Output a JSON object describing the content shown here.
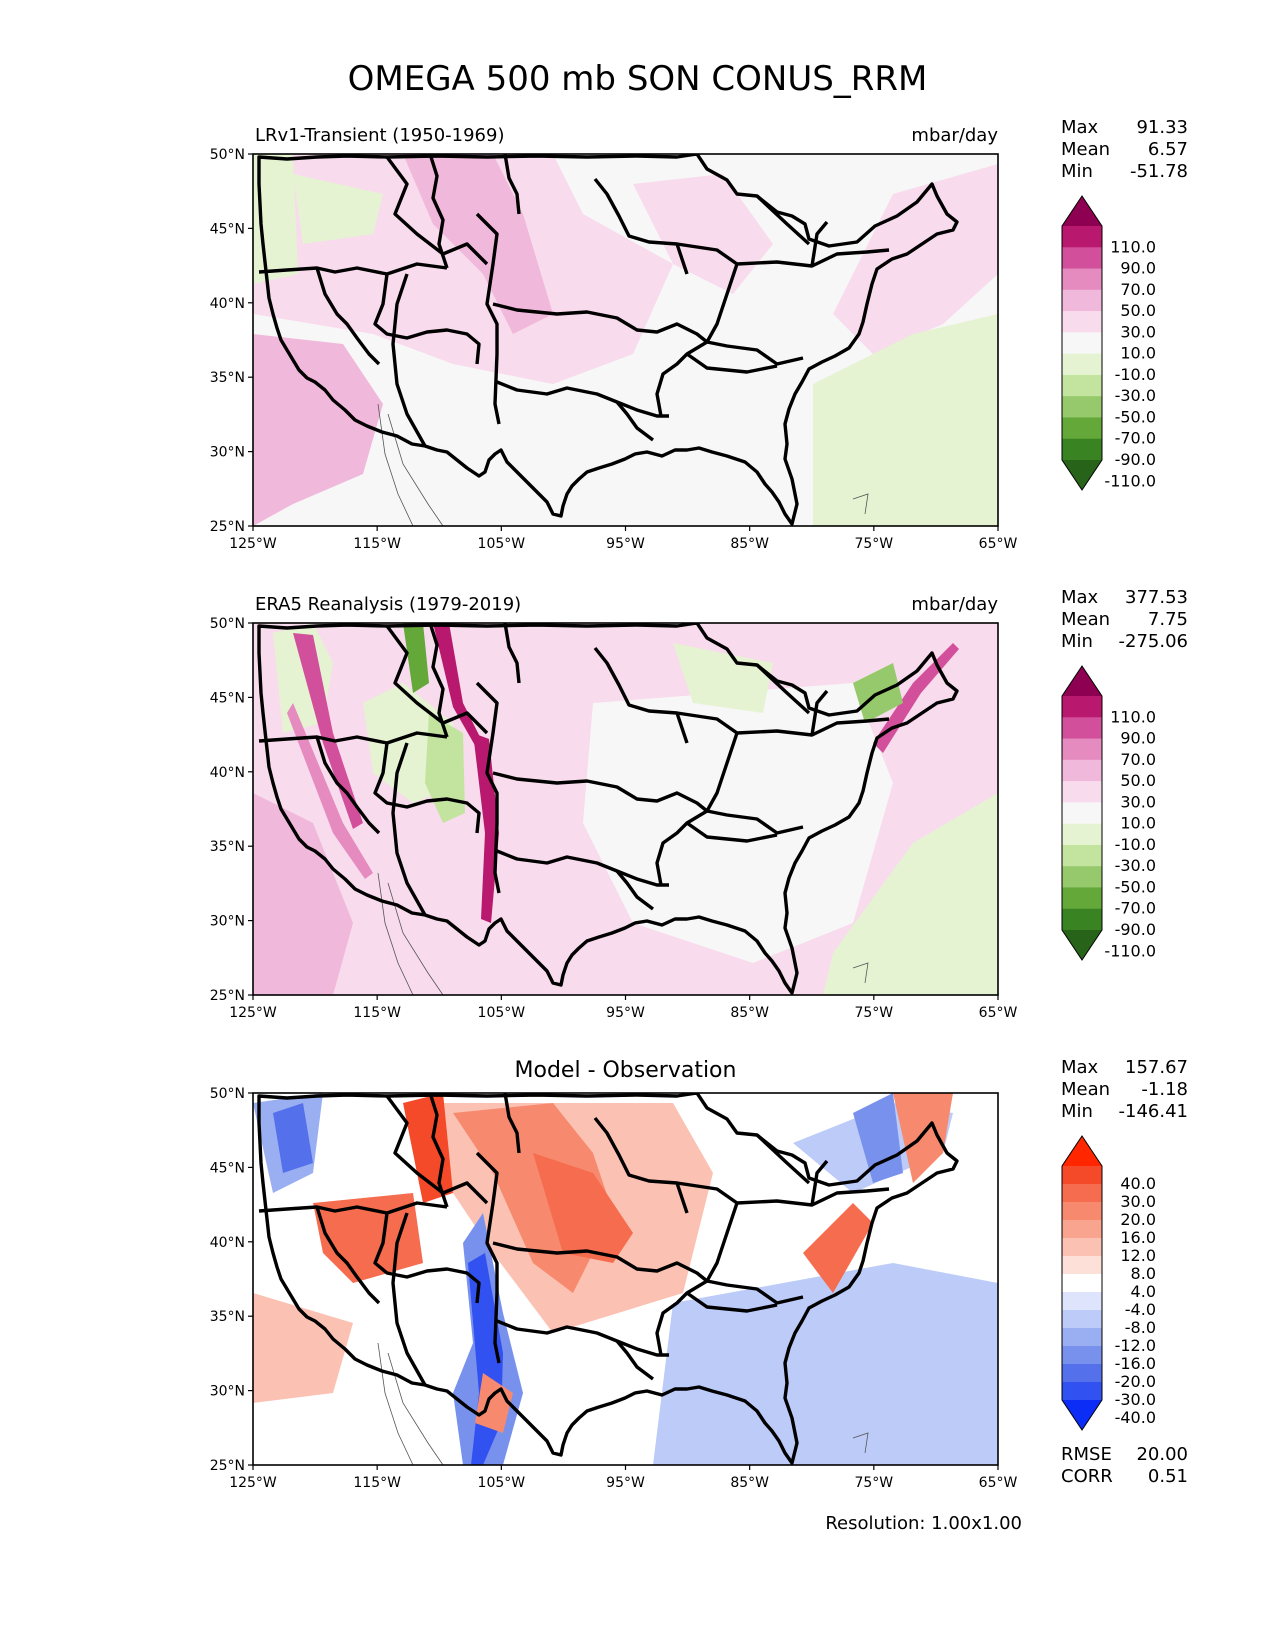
{
  "title": "OMEGA 500 mb SON CONUS_RRM",
  "x_ticks": [
    "125°W",
    "115°W",
    "105°W",
    "95°W",
    "85°W",
    "75°W",
    "65°W"
  ],
  "y_ticks": [
    "50°N",
    "45°N",
    "40°N",
    "35°N",
    "30°N",
    "25°N"
  ],
  "panels": [
    {
      "left_title": "LRv1-Transient (1950-1969)",
      "right_title": "mbar/day",
      "stats": {
        "max_label": "Max",
        "max": "91.33",
        "mean_label": "Mean",
        "mean": "6.57",
        "min_label": "Min",
        "min": "-51.78"
      },
      "levels": [
        "110.0",
        "90.0",
        "70.0",
        "50.0",
        "30.0",
        "10.0",
        "-10.0",
        "-30.0",
        "-50.0",
        "-70.0",
        "-90.0",
        "-110.0"
      ]
    },
    {
      "left_title": "ERA5 Reanalysis (1979-2019)",
      "right_title": "mbar/day",
      "stats": {
        "max_label": "Max",
        "max": "377.53",
        "mean_label": "Mean",
        "mean": "7.75",
        "min_label": "Min",
        "min": "-275.06"
      },
      "levels": [
        "110.0",
        "90.0",
        "70.0",
        "50.0",
        "30.0",
        "10.0",
        "-10.0",
        "-30.0",
        "-50.0",
        "-70.0",
        "-90.0",
        "-110.0"
      ]
    },
    {
      "center_title": "Model - Observation",
      "stats": {
        "max_label": "Max",
        "max": "157.67",
        "mean_label": "Mean",
        "mean": "-1.18",
        "min_label": "Min",
        "min": "-146.41"
      },
      "levels": [
        "40.0",
        "30.0",
        "20.0",
        "16.0",
        "12.0",
        "8.0",
        "4.0",
        "-4.0",
        "-8.0",
        "-12.0",
        "-16.0",
        "-20.0",
        "-30.0",
        "-40.0"
      ],
      "extra": {
        "rmse_label": "RMSE",
        "rmse": "20.00",
        "corr_label": "CORR",
        "corr": "0.51"
      }
    }
  ],
  "footer": "Resolution: 1.00x1.00",
  "colors": {
    "pink_scale": [
      "#8e0152",
      "#b8186d",
      "#d2509b",
      "#e58bbf",
      "#f0b8da",
      "#f8dbec",
      "#f7f7f7",
      "#e5f3d3",
      "#c3e49f",
      "#96c96c",
      "#64a83a",
      "#3a8322",
      "#276419"
    ],
    "diff_scale": [
      "#ff2600",
      "#f54a2a",
      "#f56c4e",
      "#f78a6e",
      "#f9a48f",
      "#fbc2b3",
      "#fde1d9",
      "#ffffff",
      "#dde4fb",
      "#bccbf8",
      "#9aaff2",
      "#7891ed",
      "#5470ea",
      "#3151f0",
      "#0c2df6"
    ]
  }
}
